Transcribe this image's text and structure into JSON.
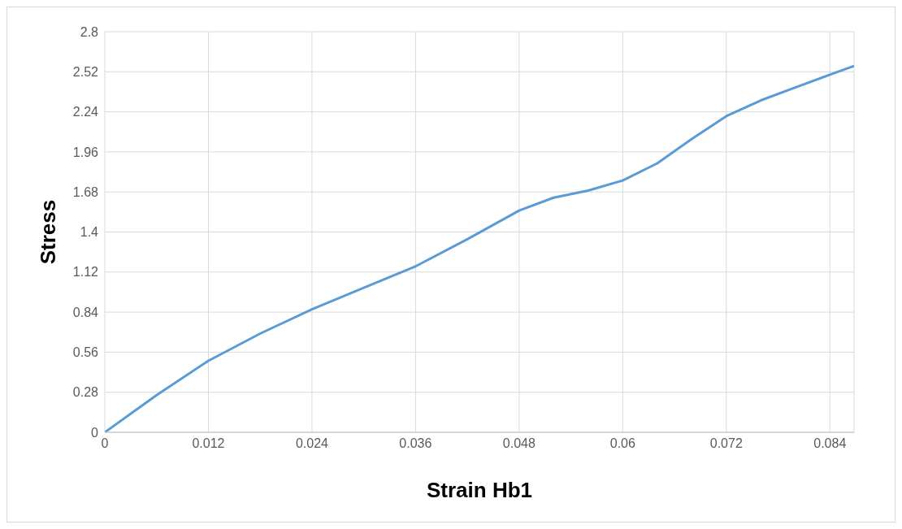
{
  "chart_data": {
    "type": "line",
    "xlabel": "Strain Hb1",
    "ylabel": "Stress",
    "x": [
      0,
      0.006,
      0.012,
      0.018,
      0.024,
      0.03,
      0.036,
      0.042,
      0.048,
      0.052,
      0.056,
      0.06,
      0.064,
      0.068,
      0.072,
      0.076,
      0.08,
      0.084,
      0.0868
    ],
    "series": [
      {
        "color": "#5b9bd5",
        "values": [
          0,
          0.26,
          0.5,
          0.69,
          0.86,
          1.01,
          1.16,
          1.35,
          1.55,
          1.64,
          1.69,
          1.76,
          1.88,
          2.05,
          2.21,
          2.32,
          2.41,
          2.5,
          2.56
        ]
      }
    ],
    "xlim": [
      0,
      0.0868
    ],
    "xticks": [
      0,
      0.012,
      0.024,
      0.036,
      0.048,
      0.06,
      0.072,
      0.084
    ],
    "ylim": [
      0,
      2.8
    ],
    "yticks": [
      0,
      0.28,
      0.56,
      0.84,
      1.12,
      1.4,
      1.68,
      1.96,
      2.24,
      2.52,
      2.8
    ],
    "grid": true,
    "marker": "none",
    "line_style": "solid",
    "legend": false
  }
}
